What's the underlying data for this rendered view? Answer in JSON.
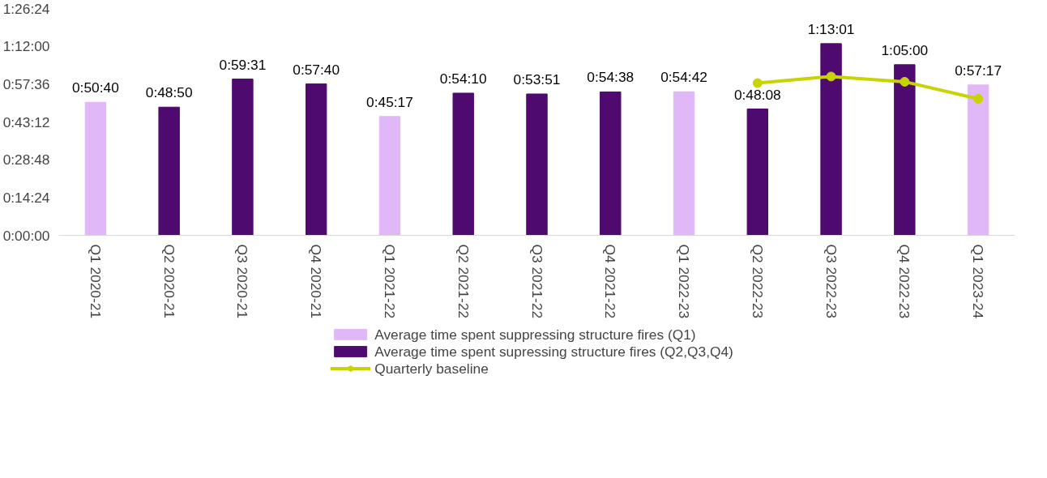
{
  "chart_data": {
    "type": "bar",
    "categories": [
      "Q1 2020-21",
      "Q2 2020-21",
      "Q3 2020-21",
      "Q4 2020-21",
      "Q1 2021-22",
      "Q2 2021-22",
      "Q3 2021-22",
      "Q4 2021-22",
      "Q1 2022-23",
      "Q2 2022-23",
      "Q3 2022-23",
      "Q4 2022-23",
      "Q1 2023-24"
    ],
    "series": [
      {
        "name": "Average time spent suppressing structure fires (Q1)",
        "color": "#e0b8f8",
        "values": [
          50.667,
          null,
          null,
          null,
          45.283,
          null,
          null,
          null,
          54.7,
          null,
          null,
          null,
          57.283
        ],
        "value_labels": [
          "0:50:40",
          null,
          null,
          null,
          "0:45:17",
          null,
          null,
          null,
          "0:54:42",
          null,
          null,
          null,
          "0:57:17"
        ]
      },
      {
        "name": "Average time spent supressing structure fires (Q2,Q3,Q4)",
        "color": "#4f0a70",
        "values": [
          null,
          48.833,
          59.517,
          57.667,
          null,
          54.167,
          53.85,
          54.633,
          null,
          48.133,
          73.017,
          65,
          null
        ],
        "value_labels": [
          null,
          "0:48:50",
          "0:59:31",
          "0:57:40",
          null,
          "0:54:10",
          "0:53:51",
          "0:54:38",
          null,
          "0:48:08",
          "1:13:01",
          "1:05:00",
          null
        ]
      },
      {
        "name": "Quarterly baseline",
        "type": "line",
        "color": "#c8d400",
        "marker": "circle",
        "values": [
          null,
          null,
          null,
          null,
          null,
          null,
          null,
          null,
          null,
          58,
          60.5,
          58.5,
          52
        ]
      }
    ],
    "ylim": [
      0,
      86.4
    ],
    "yticks": [
      {
        "value": 0,
        "label": "0:00:00"
      },
      {
        "value": 14.4,
        "label": "0:14:24"
      },
      {
        "value": 28.8,
        "label": "0:28:48"
      },
      {
        "value": 43.2,
        "label": "0:43:12"
      },
      {
        "value": 57.6,
        "label": "0:57:36"
      },
      {
        "value": 72,
        "label": "1:12:00"
      },
      {
        "value": 86.4,
        "label": "1:26:24"
      }
    ],
    "grid": false,
    "legend": "bottom"
  }
}
